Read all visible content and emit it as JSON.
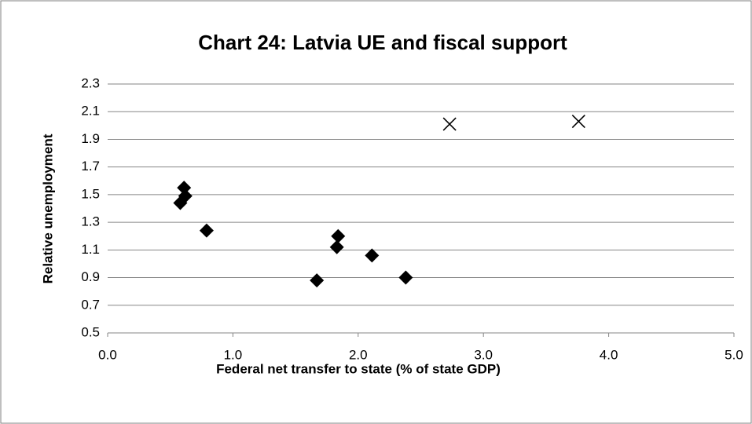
{
  "chart_data": {
    "type": "scatter",
    "title": "Chart 24: Latvia UE and fiscal support",
    "x_label": "Federal net transfer to state (% of state GDP)",
    "y_label": "Relative unemployment",
    "xlim": [
      0,
      5
    ],
    "ylim": [
      0.5,
      2.3
    ],
    "xticks": [
      {
        "value": 0,
        "label": "0.0"
      },
      {
        "value": 1,
        "label": "1.0"
      },
      {
        "value": 2,
        "label": "2.0"
      },
      {
        "value": 3,
        "label": "3.0"
      },
      {
        "value": 4,
        "label": "4.0"
      },
      {
        "value": 5,
        "label": "5.0"
      }
    ],
    "yticks": [
      0.5,
      0.7,
      0.9,
      1.1,
      1.3,
      1.5,
      1.7,
      1.9,
      2.1,
      2.3
    ],
    "grid": true,
    "series": [
      {
        "color": "#000000",
        "marker": "diamond",
        "x": [
          0.58,
          0.61,
          0.62,
          0.79,
          1.84,
          1.83,
          1.67,
          2.11,
          2.38
        ],
        "values": [
          1.44,
          1.55,
          1.49,
          1.24,
          1.2,
          1.12,
          0.88,
          1.06,
          0.9
        ]
      },
      {
        "color": "#000000",
        "marker": "x",
        "x": [
          2.73,
          3.76
        ],
        "values": [
          2.01,
          2.03
        ]
      }
    ]
  }
}
